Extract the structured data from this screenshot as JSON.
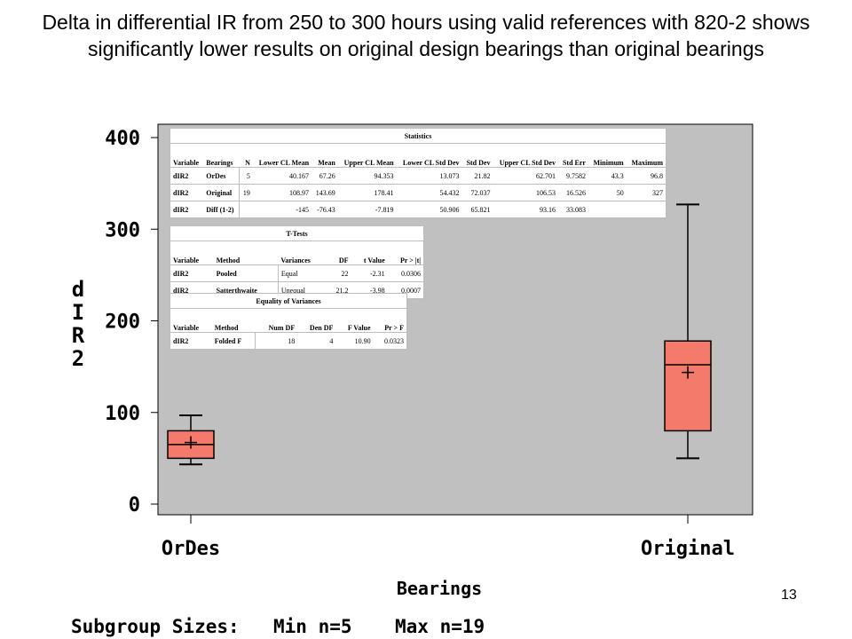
{
  "title": "Delta in differential IR from 250 to 300 hours using valid references with 820-2 shows significantly lower results on original design bearings than original bearings",
  "slide_number": "13",
  "colors": {
    "plot_bg": "#c0c0c0",
    "box_fill": "#f47a6b",
    "box_stroke": "#000000"
  },
  "chart_data": {
    "type": "box",
    "xlabel": "Bearings",
    "ylabel": "dIR2",
    "ylabel_lines": [
      "d",
      "I",
      "R",
      "2"
    ],
    "ylim": [
      0,
      400
    ],
    "yticks": [
      0,
      100,
      200,
      300,
      400
    ],
    "categories": [
      "OrDes",
      "Original"
    ],
    "boxes": [
      {
        "category": "OrDes",
        "min": 43.3,
        "q1": 50,
        "median": 65,
        "q3": 80,
        "max": 96.8,
        "mean": 67.26
      },
      {
        "category": "Original",
        "min": 50,
        "q1": 80,
        "median": 152,
        "q3": 178,
        "max": 327,
        "mean": 143.69
      }
    ],
    "footer": {
      "label": "Subgroup Sizes:",
      "min_text": "Min n=5",
      "max_text": "Max n=19"
    }
  },
  "statistics_table": {
    "caption": "Statistics",
    "headers": [
      "Variable",
      "Bearings",
      "N",
      "Lower CL Mean",
      "Mean",
      "Upper CL Mean",
      "Lower CL Std Dev",
      "Std Dev",
      "Upper CL Std Dev",
      "Std Err",
      "Minimum",
      "Maximum"
    ],
    "rows": [
      [
        "dIR2",
        "OrDes",
        "5",
        "40.167",
        "67.26",
        "94.353",
        "13.073",
        "21.82",
        "62.701",
        "9.7582",
        "43.3",
        "96.8"
      ],
      [
        "dIR2",
        "Original",
        "19",
        "108.97",
        "143.69",
        "178.41",
        "54.432",
        "72.037",
        "106.53",
        "16.526",
        "50",
        "327"
      ],
      [
        "dIR2",
        "Diff (1-2)",
        "",
        "-145",
        "-76.43",
        "-7.819",
        "50.906",
        "65.821",
        "93.16",
        "33.083",
        "",
        ""
      ]
    ]
  },
  "ttest_table": {
    "caption": "T-Tests",
    "headers": [
      "Variable",
      "Method",
      "Variances",
      "DF",
      "t Value",
      "Pr > |t|"
    ],
    "rows": [
      [
        "dIR2",
        "Pooled",
        "Equal",
        "22",
        "-2.31",
        "0.0306"
      ],
      [
        "dIR2",
        "Satterthwaite",
        "Unequal",
        "21.2",
        "-3.98",
        "0.0007"
      ]
    ]
  },
  "variance_table": {
    "caption": "Equality of Variances",
    "headers": [
      "Variable",
      "Method",
      "Num DF",
      "Den DF",
      "F Value",
      "Pr > F"
    ],
    "rows": [
      [
        "dIR2",
        "Folded F",
        "18",
        "4",
        "10.90",
        "0.0323"
      ]
    ]
  }
}
